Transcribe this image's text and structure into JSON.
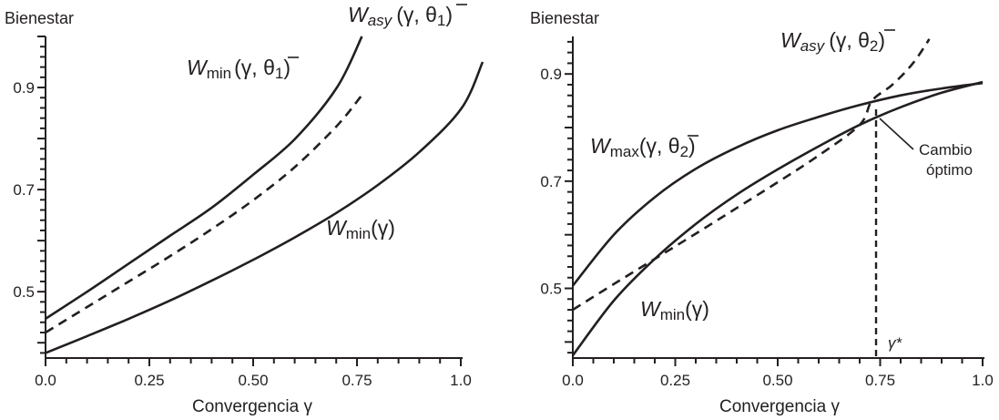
{
  "chart_data": [
    {
      "type": "line",
      "ylabel": "Bienestar",
      "xlabel": "Convergencia γ",
      "xlim": [
        0,
        1.05
      ],
      "ylim": [
        0.37,
        1.0
      ],
      "x_ticks": [
        "0.0",
        "0.25",
        "0.50",
        "0.75",
        "1.0"
      ],
      "y_ticks": [
        "0.5",
        "0.7",
        "0.9"
      ],
      "series": [
        {
          "key": "w_min_theta1",
          "label": {
            "main": "W",
            "sub": "min",
            "args": "(γ, θ",
            "args_sub": "1",
            "close": ")"
          },
          "style": "solid",
          "x": [
            0,
            0.1,
            0.2,
            0.3,
            0.4,
            0.5,
            0.6,
            0.7,
            0.76
          ],
          "y": [
            0.447,
            0.5,
            0.555,
            0.61,
            0.665,
            0.73,
            0.8,
            0.9,
            1.0
          ]
        },
        {
          "key": "w_asy_theta1",
          "label": {
            "main": "W",
            "sub": "asy",
            "args": "(γ, θ",
            "args_sub": "1",
            "close": ")"
          },
          "style": "dashed",
          "x": [
            0,
            0.1,
            0.2,
            0.3,
            0.4,
            0.5,
            0.6,
            0.7,
            0.76
          ],
          "y": [
            0.42,
            0.47,
            0.52,
            0.57,
            0.623,
            0.68,
            0.745,
            0.825,
            0.885
          ]
        },
        {
          "key": "w_min",
          "label": {
            "main": "W",
            "sub": "min",
            "args": "(γ",
            "args_sub": "",
            "close": ")"
          },
          "style": "solid",
          "x": [
            0,
            0.1,
            0.2,
            0.3,
            0.4,
            0.5,
            0.6,
            0.7,
            0.8,
            0.9,
            1.0,
            1.05
          ],
          "y": [
            0.38,
            0.413,
            0.447,
            0.483,
            0.522,
            0.563,
            0.607,
            0.655,
            0.71,
            0.775,
            0.86,
            0.95
          ]
        }
      ]
    },
    {
      "type": "line",
      "ylabel": "Bienestar",
      "xlabel": "Convergencia γ",
      "xlim": [
        0,
        1.0
      ],
      "ylim": [
        0.37,
        0.97
      ],
      "x_ticks": [
        "0.0",
        "0.25",
        "0.50",
        "0.75",
        "1.0"
      ],
      "y_ticks": [
        "0.5",
        "0.7",
        "0.9"
      ],
      "series": [
        {
          "key": "w_max_theta2",
          "label": {
            "main": "W",
            "sub": "max",
            "args": "(γ, θ",
            "args_sub": "2",
            "close": ")"
          },
          "style": "solid",
          "x": [
            0,
            0.1,
            0.2,
            0.3,
            0.4,
            0.5,
            0.6,
            0.7,
            0.8,
            0.9,
            1.0
          ],
          "y": [
            0.505,
            0.6,
            0.67,
            0.723,
            0.763,
            0.795,
            0.82,
            0.842,
            0.86,
            0.873,
            0.883
          ]
        },
        {
          "key": "w_asy_theta2",
          "label": {
            "main": "W",
            "sub": "asy",
            "args": "(γ, θ",
            "args_sub": "2",
            "close": ")"
          },
          "style": "dashed",
          "x": [
            0,
            0.1,
            0.2,
            0.3,
            0.4,
            0.5,
            0.6,
            0.7,
            0.73,
            0.78,
            0.83,
            0.87
          ],
          "y": [
            0.46,
            0.508,
            0.555,
            0.602,
            0.65,
            0.698,
            0.748,
            0.805,
            0.85,
            0.88,
            0.92,
            0.965
          ]
        },
        {
          "key": "w_min",
          "label": {
            "main": "W",
            "sub": "min",
            "args": "(γ",
            "args_sub": "",
            "close": ")"
          },
          "style": "solid",
          "x": [
            0,
            0.1,
            0.2,
            0.3,
            0.4,
            0.5,
            0.6,
            0.7,
            0.8,
            0.9,
            1.0
          ],
          "y": [
            0.375,
            0.477,
            0.555,
            0.62,
            0.675,
            0.722,
            0.765,
            0.805,
            0.838,
            0.865,
            0.885
          ]
        }
      ],
      "annotations": {
        "optimal_change": {
          "line1": "Cambio",
          "line2": "óptimo",
          "x": 0.73,
          "y": 0.85
        },
        "gamma_star": {
          "label": "γ*",
          "x": 0.73
        }
      }
    }
  ]
}
